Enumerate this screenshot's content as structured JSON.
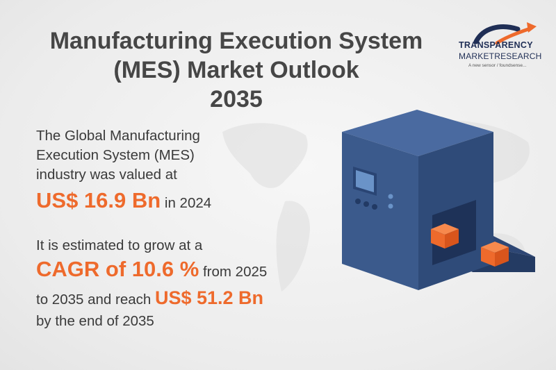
{
  "title": {
    "line1": "Manufacturing Execution System",
    "line2": "(MES) Market Outlook",
    "line3": "2035"
  },
  "logo": {
    "name_line1": "TRANSPARENCY",
    "name_line2": "MARKETRESEARCH",
    "tagline": "A new sensor / foundsense..."
  },
  "intro": {
    "line1": "The Global Manufacturing",
    "line2": "Execution System (MES)",
    "line3": "industry was valued at",
    "value": "US$ 16.9 Bn",
    "value_suffix": "in 2024"
  },
  "growth": {
    "line1": "It is estimated to grow at a",
    "cagr": "CAGR of 10.6 %",
    "cagr_suffix": "from 2025",
    "line3_prefix": "to 2035 and reach",
    "future_value": "US$ 51.2 Bn",
    "line4": "by the end of 2035"
  },
  "colors": {
    "accent": "#ee6a2c",
    "machine_blue": "#3b5a8c",
    "logo_navy": "#1f2e55"
  },
  "icons": [
    "world-map-icon",
    "logo-arrow-icon",
    "machine-illustration"
  ]
}
